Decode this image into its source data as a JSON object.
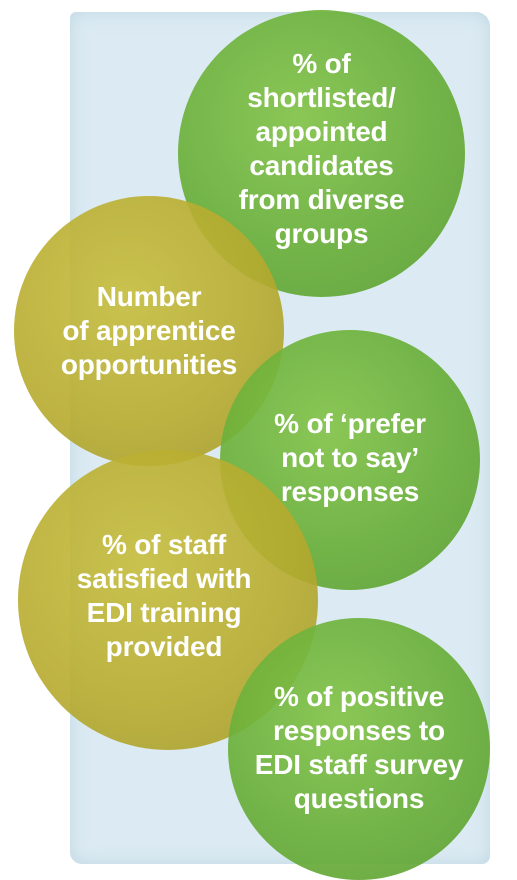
{
  "circles": [
    {
      "label": "% of\nshortlisted/\nappointed\ncandidates\nfrom diverse\ngroups",
      "color": "#7ab648"
    },
    {
      "label": "Number\nof apprentice\nopportunities",
      "color": "#b9ad30"
    },
    {
      "label": "% of ‘prefer\nnot to say’\nresponses",
      "color": "#7ab648"
    },
    {
      "label": "% of staff\nsatisfied with\nEDI training\nprovided",
      "color": "#b9ad30"
    },
    {
      "label": "% of positive\nresponses to\nEDI staff survey\nquestions",
      "color": "#7ab648"
    }
  ]
}
